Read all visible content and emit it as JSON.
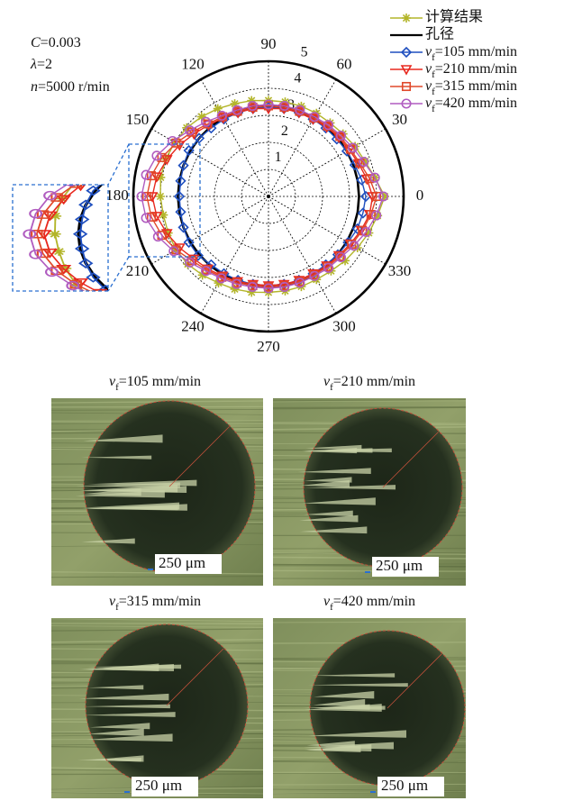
{
  "chart_data": {
    "type": "polar",
    "annotations": [
      "C=0.003",
      "λ=2",
      "n=5000 r/min"
    ],
    "rlim": [
      0,
      5
    ],
    "rticks": [
      1,
      2,
      3,
      4,
      5
    ],
    "thetaticks": [
      0,
      30,
      60,
      90,
      120,
      150,
      180,
      210,
      240,
      270,
      300,
      330
    ],
    "grid": true,
    "legend": "top-right",
    "theta": [
      0,
      10,
      20,
      30,
      40,
      50,
      60,
      70,
      80,
      90,
      100,
      110,
      120,
      130,
      140,
      150,
      160,
      170,
      180,
      190,
      200,
      210,
      220,
      230,
      240,
      250,
      260,
      270,
      280,
      290,
      300,
      310,
      320,
      330,
      340,
      350
    ],
    "series": [
      {
        "name": "计算结果",
        "color": "#b3b52a",
        "marker": "star",
        "values": [
          4.3,
          4.0,
          3.8,
          3.7,
          3.6,
          3.55,
          3.55,
          3.55,
          3.55,
          3.55,
          3.6,
          3.65,
          3.75,
          3.85,
          3.95,
          4.0,
          4.05,
          4.05,
          4.0,
          3.95,
          3.95,
          3.95,
          3.9,
          3.8,
          3.7,
          3.65,
          3.6,
          3.55,
          3.55,
          3.55,
          3.55,
          3.6,
          3.7,
          3.8,
          3.95,
          4.1
        ]
      },
      {
        "name": "孔径",
        "color": "#000000",
        "marker": "none",
        "values": [
          3.35,
          3.35,
          3.35,
          3.35,
          3.35,
          3.35,
          3.35,
          3.35,
          3.35,
          3.35,
          3.35,
          3.35,
          3.35,
          3.35,
          3.35,
          3.35,
          3.35,
          3.35,
          3.35,
          3.35,
          3.35,
          3.35,
          3.35,
          3.35,
          3.35,
          3.35,
          3.35,
          3.35,
          3.35,
          3.35,
          3.35,
          3.35,
          3.35,
          3.35,
          3.35,
          3.35
        ]
      },
      {
        "name": "vf=105 mm/min",
        "color": "#1f4fbf",
        "marker": "diamond",
        "values": [
          3.6,
          3.5,
          3.4,
          3.35,
          3.3,
          3.3,
          3.3,
          3.3,
          3.3,
          3.3,
          3.3,
          3.3,
          3.3,
          3.3,
          3.35,
          3.4,
          3.35,
          3.3,
          3.3,
          3.3,
          3.35,
          3.4,
          3.4,
          3.3,
          3.3,
          3.3,
          3.3,
          3.3,
          3.3,
          3.3,
          3.3,
          3.3,
          3.35,
          3.4,
          3.5,
          3.55
        ]
      },
      {
        "name": "vf=210 mm/min",
        "color": "#e8281e",
        "marker": "triangle-down",
        "values": [
          3.85,
          3.7,
          3.55,
          3.45,
          3.4,
          3.35,
          3.3,
          3.3,
          3.3,
          3.25,
          3.3,
          3.3,
          3.35,
          3.45,
          3.6,
          3.8,
          4.0,
          4.2,
          4.3,
          4.2,
          4.0,
          3.8,
          3.6,
          3.5,
          3.4,
          3.35,
          3.3,
          3.3,
          3.3,
          3.3,
          3.3,
          3.35,
          3.4,
          3.5,
          3.65,
          3.8
        ]
      },
      {
        "name": "vf=315 mm/min",
        "color": "#e0482a",
        "marker": "square",
        "values": [
          4.0,
          3.8,
          3.6,
          3.5,
          3.45,
          3.4,
          3.35,
          3.35,
          3.35,
          3.35,
          3.35,
          3.35,
          3.4,
          3.5,
          3.7,
          3.95,
          4.2,
          4.4,
          4.5,
          4.4,
          4.2,
          3.95,
          3.7,
          3.55,
          3.45,
          3.4,
          3.35,
          3.35,
          3.35,
          3.35,
          3.35,
          3.4,
          3.45,
          3.55,
          3.7,
          3.85
        ]
      },
      {
        "name": "vf=420 mm/min",
        "color": "#b05cc0",
        "marker": "circle",
        "values": [
          4.25,
          4.0,
          3.75,
          3.6,
          3.5,
          3.45,
          3.4,
          3.4,
          3.4,
          3.4,
          3.4,
          3.4,
          3.45,
          3.6,
          3.8,
          4.1,
          4.4,
          4.6,
          4.7,
          4.6,
          4.35,
          4.05,
          3.8,
          3.6,
          3.5,
          3.45,
          3.4,
          3.4,
          3.4,
          3.4,
          3.4,
          3.45,
          3.5,
          3.65,
          3.85,
          4.05
        ]
      }
    ]
  },
  "images": [
    {
      "title": "vf=105 mm/min",
      "scale": "250 μm"
    },
    {
      "title": "vf=210 mm/min",
      "scale": "250 μm"
    },
    {
      "title": "vf=315 mm/min",
      "scale": "250 μm"
    },
    {
      "title": "vf=420 mm/min",
      "scale": "250 μm"
    }
  ]
}
